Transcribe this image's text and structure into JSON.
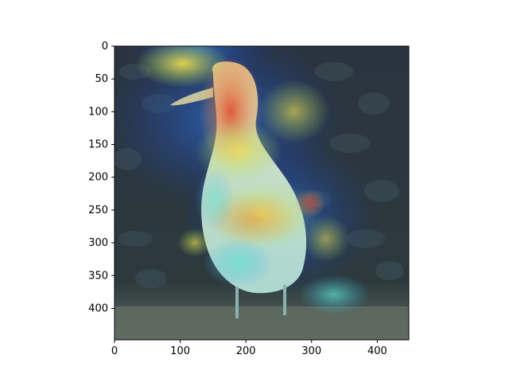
{
  "figure": {
    "axes": {
      "x_ticks": [
        "0",
        "100",
        "200",
        "300",
        "400"
      ],
      "y_ticks": [
        "0",
        "50",
        "100",
        "150",
        "200",
        "250",
        "300",
        "350",
        "400"
      ],
      "x_range": [
        0,
        448
      ],
      "y_range": [
        448,
        0
      ]
    },
    "image": {
      "description_icon": "bird-heatmap-overlay",
      "colors": {
        "foliage_dark": "#1f2a33",
        "foliage_mid": "#3a4a50",
        "ground": "#5c6a60",
        "overlay_blue": "#1a3aa8",
        "overlay_cyan": "#4fe0d8",
        "overlay_yellow": "#f4e04a",
        "overlay_red": "#e2452c"
      }
    }
  }
}
